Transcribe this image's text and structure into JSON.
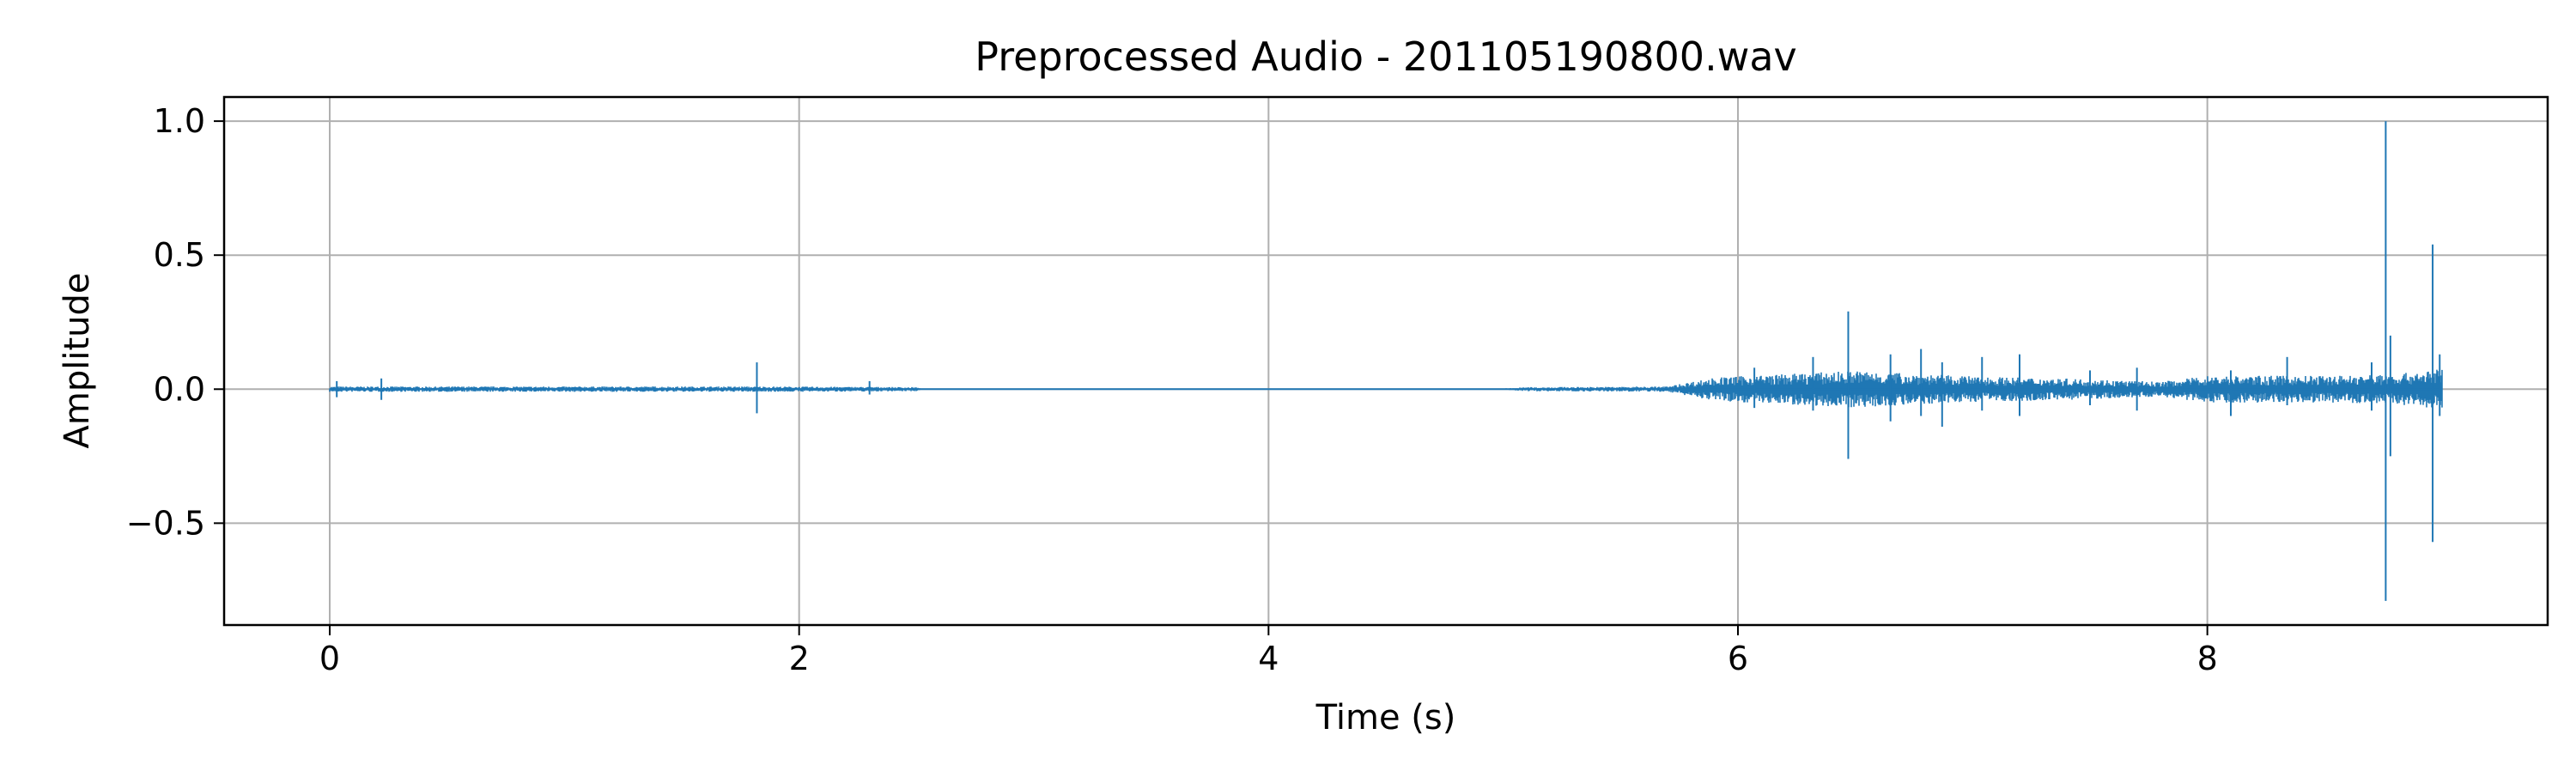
{
  "chart_data": {
    "type": "line",
    "title": "Preprocessed Audio - 201105190800.wav",
    "xlabel": "Time (s)",
    "ylabel": "Amplitude",
    "xlim": [
      -0.45,
      9.45
    ],
    "ylim": [
      -0.88,
      1.09
    ],
    "xticks": [
      0,
      2,
      4,
      6,
      8
    ],
    "xtick_labels": [
      "0",
      "2",
      "4",
      "6",
      "8"
    ],
    "yticks": [
      -0.5,
      0.0,
      0.5,
      1.0
    ],
    "ytick_labels": [
      "−0.5",
      "0.0",
      "0.5",
      "1.0"
    ],
    "grid": true,
    "legend": "none",
    "line_color": "#1f77b4",
    "duration_s": 9.0,
    "series": [
      {
        "envelope": [
          {
            "t": 0.0,
            "amp": 0.008
          },
          {
            "t": 0.2,
            "amp": 0.008
          },
          {
            "t": 1.0,
            "amp": 0.008
          },
          {
            "t": 1.8,
            "amp": 0.008
          },
          {
            "t": 2.3,
            "amp": 0.007
          },
          {
            "t": 2.5,
            "amp": 0.006
          },
          {
            "t": 2.52,
            "amp": 0.001
          },
          {
            "t": 5.0,
            "amp": 0.002
          },
          {
            "t": 5.1,
            "amp": 0.006
          },
          {
            "t": 5.7,
            "amp": 0.008
          },
          {
            "t": 5.75,
            "amp": 0.015
          },
          {
            "t": 5.9,
            "amp": 0.035
          },
          {
            "t": 6.2,
            "amp": 0.045
          },
          {
            "t": 6.5,
            "amp": 0.055
          },
          {
            "t": 7.0,
            "amp": 0.038
          },
          {
            "t": 7.5,
            "amp": 0.03
          },
          {
            "t": 7.8,
            "amp": 0.022
          },
          {
            "t": 8.0,
            "amp": 0.04
          },
          {
            "t": 8.5,
            "amp": 0.04
          },
          {
            "t": 8.8,
            "amp": 0.045
          },
          {
            "t": 9.0,
            "amp": 0.06
          }
        ],
        "spikes": [
          {
            "t": 0.03,
            "min": -0.03,
            "max": 0.03
          },
          {
            "t": 0.22,
            "min": -0.04,
            "max": 0.04
          },
          {
            "t": 1.82,
            "min": -0.09,
            "max": 0.1
          },
          {
            "t": 2.3,
            "min": -0.02,
            "max": 0.03
          },
          {
            "t": 6.07,
            "min": -0.07,
            "max": 0.08
          },
          {
            "t": 6.32,
            "min": -0.08,
            "max": 0.12
          },
          {
            "t": 6.47,
            "min": -0.26,
            "max": 0.29
          },
          {
            "t": 6.65,
            "min": -0.12,
            "max": 0.13
          },
          {
            "t": 6.78,
            "min": -0.1,
            "max": 0.15
          },
          {
            "t": 6.87,
            "min": -0.14,
            "max": 0.1
          },
          {
            "t": 7.04,
            "min": -0.08,
            "max": 0.12
          },
          {
            "t": 7.2,
            "min": -0.1,
            "max": 0.13
          },
          {
            "t": 7.5,
            "min": -0.06,
            "max": 0.07
          },
          {
            "t": 7.7,
            "min": -0.08,
            "max": 0.08
          },
          {
            "t": 8.1,
            "min": -0.1,
            "max": 0.07
          },
          {
            "t": 8.34,
            "min": -0.06,
            "max": 0.12
          },
          {
            "t": 8.7,
            "min": -0.08,
            "max": 0.1
          },
          {
            "t": 8.76,
            "min": -0.79,
            "max": 1.0
          },
          {
            "t": 8.78,
            "min": -0.25,
            "max": 0.2
          },
          {
            "t": 8.96,
            "min": -0.57,
            "max": 0.54
          },
          {
            "t": 8.99,
            "min": -0.1,
            "max": 0.13
          }
        ]
      }
    ]
  }
}
